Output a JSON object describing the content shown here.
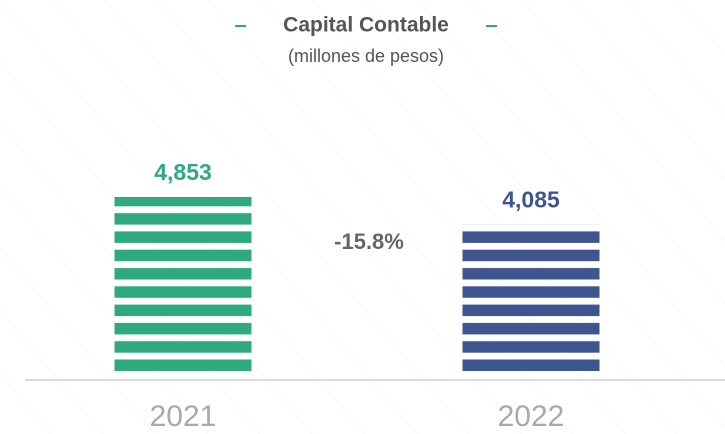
{
  "chart_data": {
    "type": "bar",
    "title": "Capital Contable",
    "subtitle": "(millones de pesos)",
    "categories": [
      "2021",
      "2022"
    ],
    "values": [
      4853,
      4085
    ],
    "value_labels": [
      "4,853",
      "4,085"
    ],
    "colors": [
      "#2eaa7e",
      "#3f5590"
    ],
    "annotation": "-15.8%"
  }
}
